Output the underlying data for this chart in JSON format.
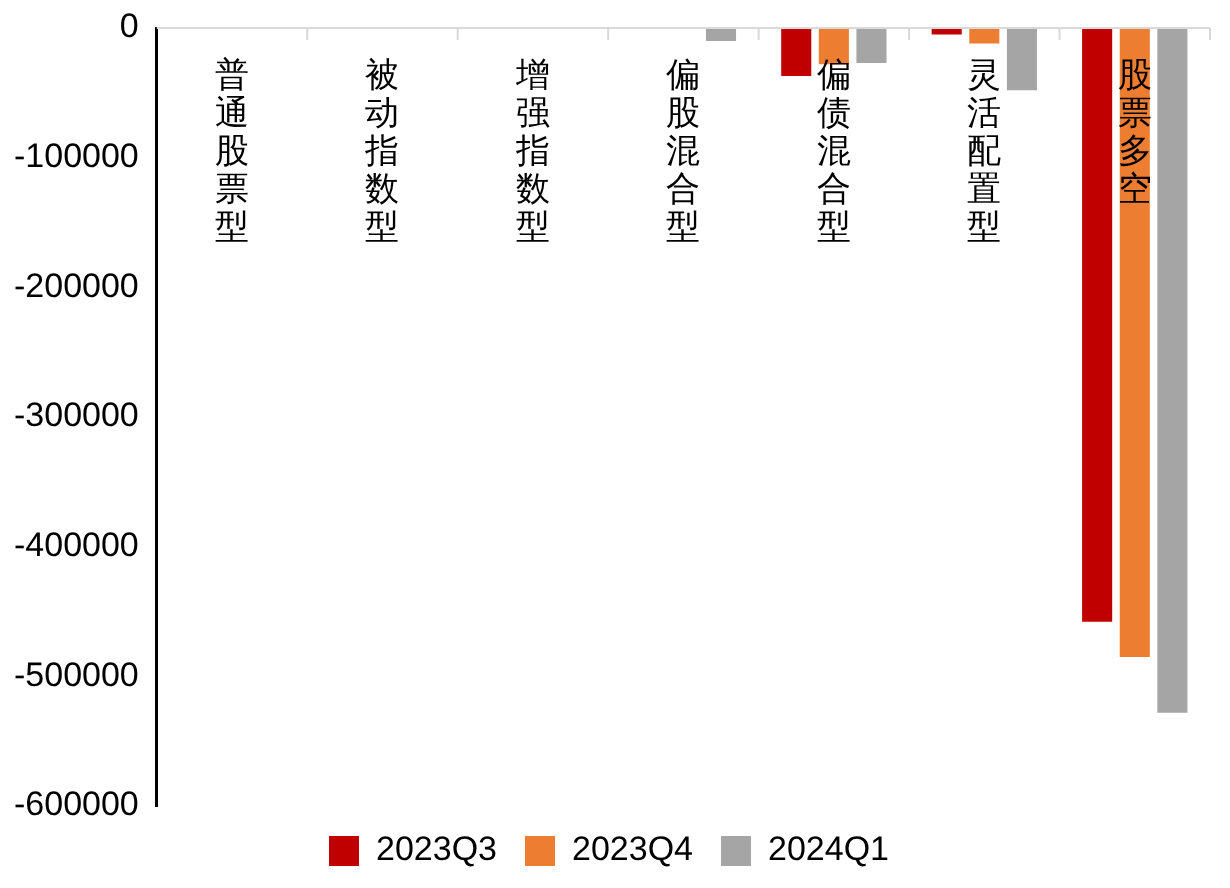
{
  "chart_data": {
    "type": "bar",
    "categories": [
      "普通股票型",
      "被动指数型",
      "增强指数型",
      "偏股混合型",
      "偏债混合型",
      "灵活配置型",
      "股票多空"
    ],
    "series": [
      {
        "name": "2023Q3",
        "color": "#c00000",
        "values": [
          0,
          0,
          0,
          0,
          -37000,
          -5000,
          -458000
        ]
      },
      {
        "name": "2023Q4",
        "color": "#ed7d31",
        "values": [
          0,
          0,
          0,
          0,
          -28000,
          -12000,
          -485000
        ]
      },
      {
        "name": "2024Q1",
        "color": "#a5a5a5",
        "values": [
          0,
          0,
          0,
          -10000,
          -27000,
          -48000,
          -528000
        ]
      }
    ],
    "ylim": [
      -600000,
      0
    ],
    "yticks": [
      -600000,
      -500000,
      -400000,
      -300000,
      -200000,
      -100000,
      0
    ],
    "grid": false,
    "legend": "bottom"
  }
}
